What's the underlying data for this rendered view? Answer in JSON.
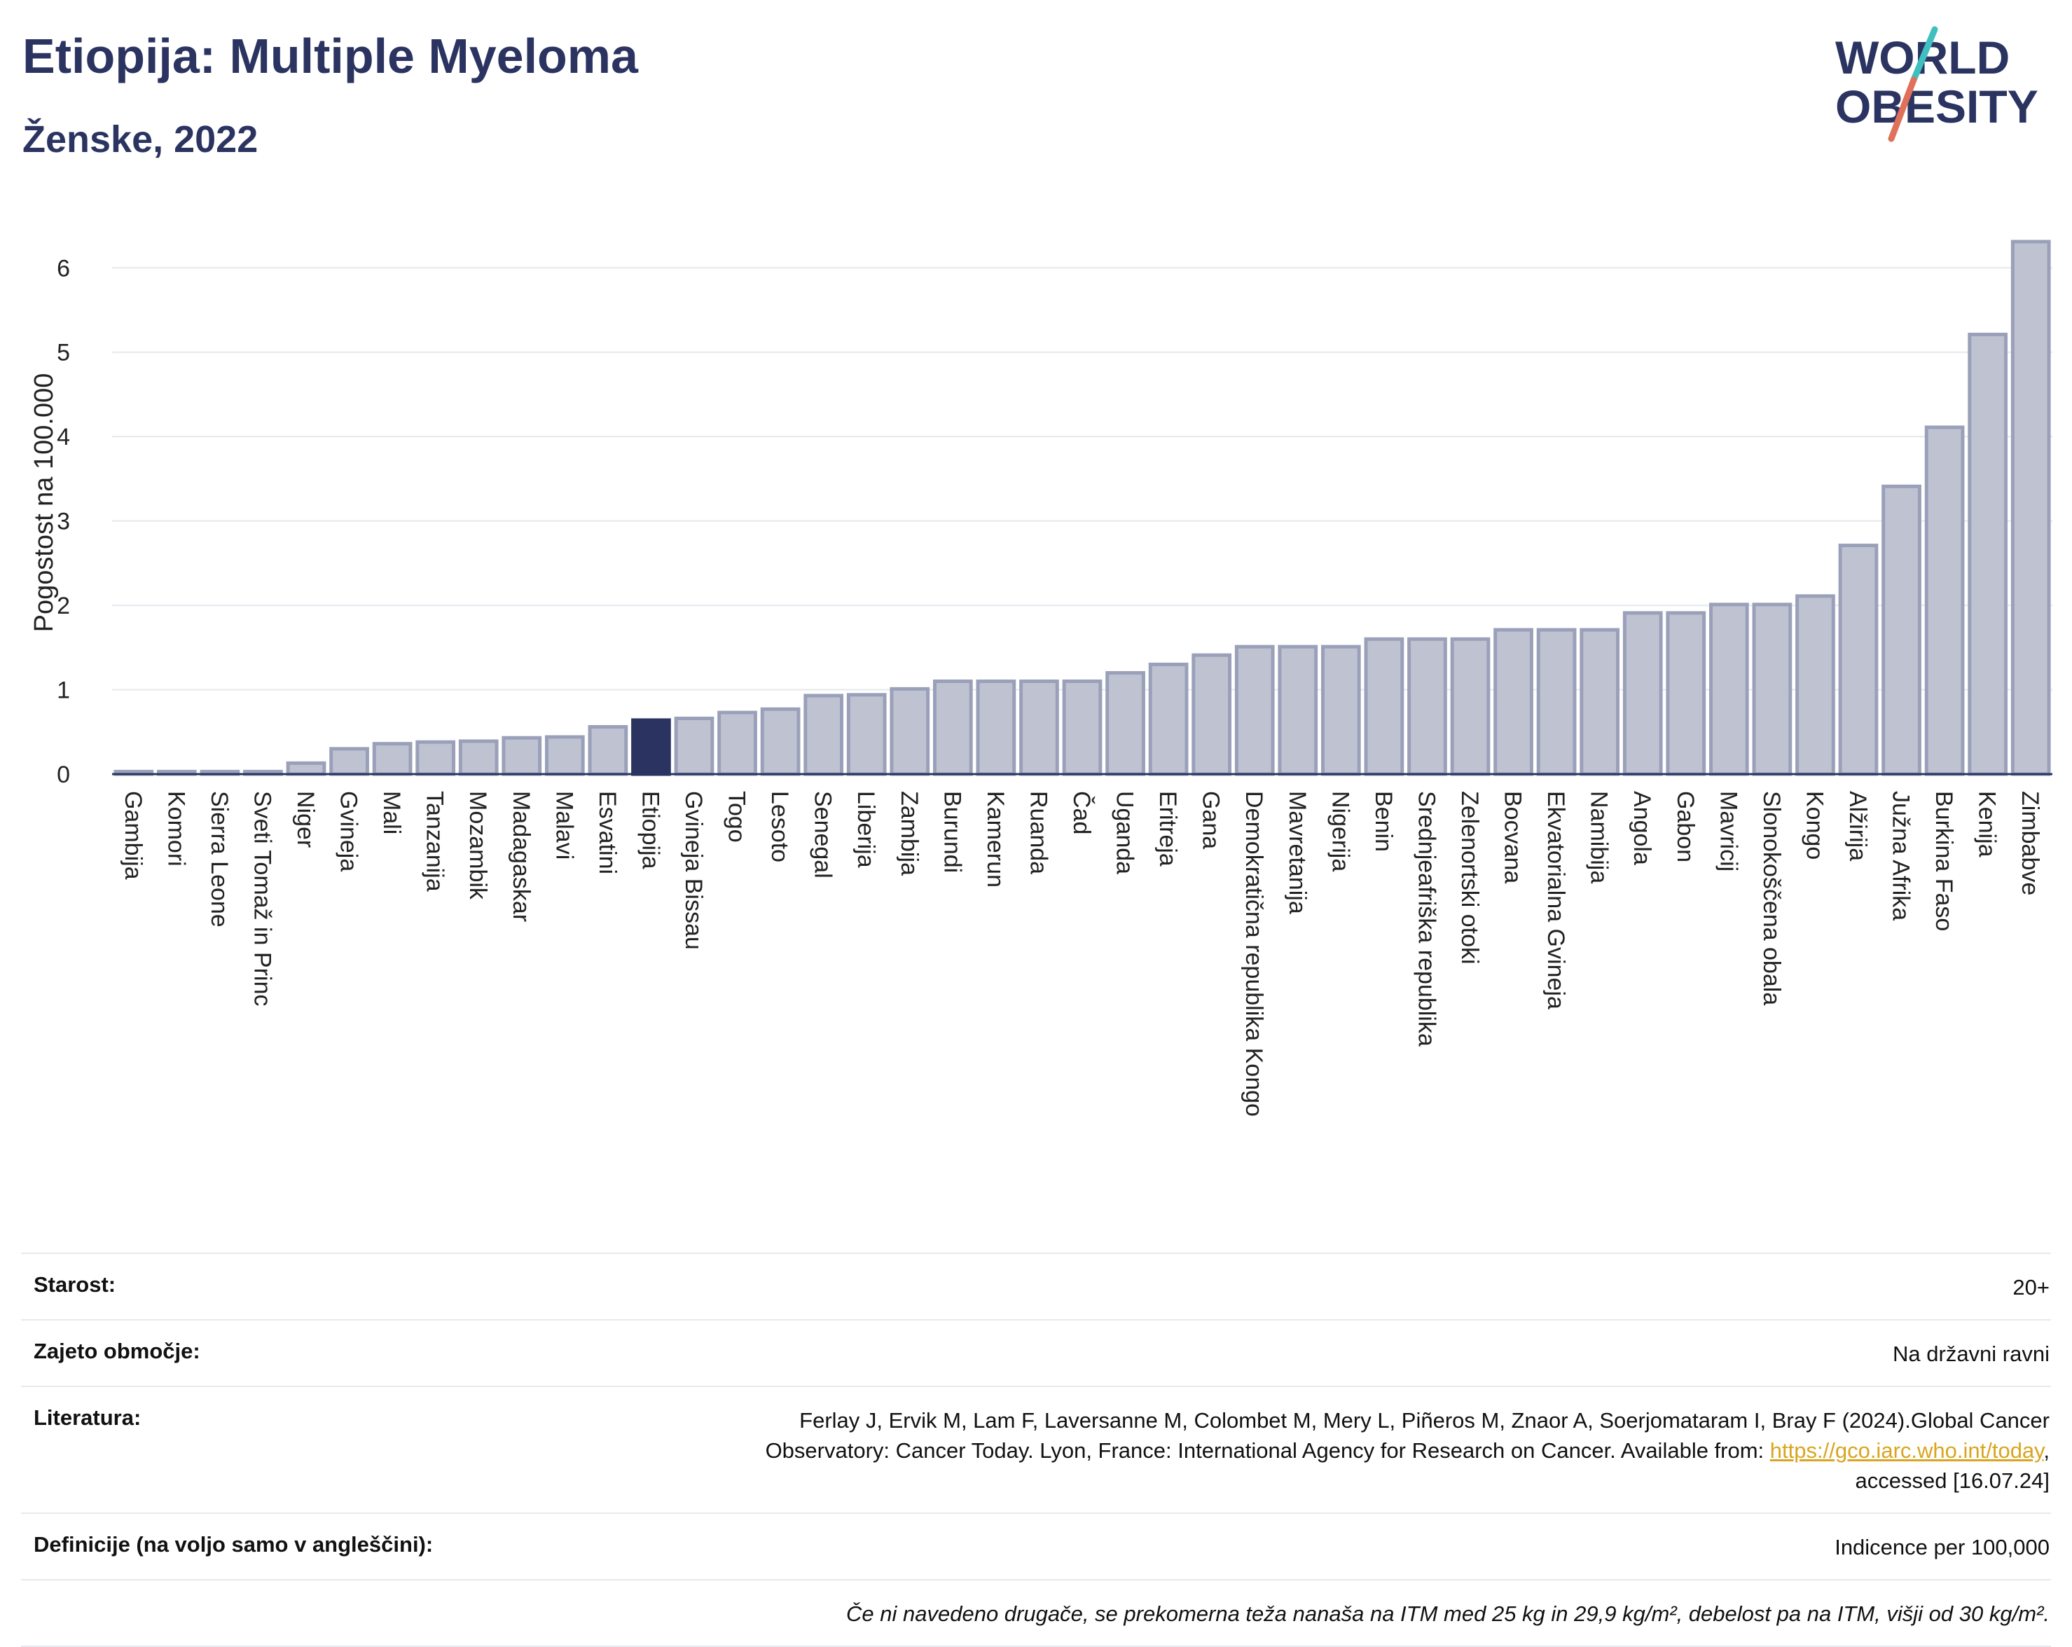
{
  "header": {
    "title": "Etiopija: Multiple Myeloma",
    "subtitle": "Ženske, 2022"
  },
  "logo": {
    "line1": "WORLD",
    "line2": "OBESITY",
    "colors": {
      "text": "#2b3461",
      "slash_teal": "#3fbfbf",
      "slash_coral": "#e0705a"
    }
  },
  "chart_data": {
    "type": "bar",
    "ylabel": "Pogostost na 100.000",
    "xlabel": "",
    "ylim": [
      0,
      6.6
    ],
    "yticks": [
      0,
      1,
      2,
      3,
      4,
      5,
      6
    ],
    "grid": true,
    "highlight": "Etiopija",
    "colors": {
      "bar": "#bfc3d1",
      "bar_edge": "#9aa0b9",
      "highlight": "#2b3461",
      "grid": "#e6e8ee",
      "axis": "#2b3461"
    },
    "categories": [
      "Gambija",
      "Komori",
      "Sierra Leone",
      "Sveti Tomaž in Princ",
      "Niger",
      "Gvineja",
      "Mali",
      "Tanzanija",
      "Mozambik",
      "Madagaskar",
      "Malavi",
      "Esvatini",
      "Etiopija",
      "Gvineja Bissau",
      "Togo",
      "Lesoto",
      "Senegal",
      "Liberija",
      "Zambija",
      "Burundi",
      "Kamerun",
      "Ruanda",
      "Čad",
      "Uganda",
      "Eritreja",
      "Gana",
      "Demokratična republika Kongo",
      "Mavretanija",
      "Nigerija",
      "Benin",
      "Srednjeafriška republika",
      "Zelenortski otoki",
      "Bocvana",
      "Ekvatorialna Gvineja",
      "Namibija",
      "Angola",
      "Gabon",
      "Mavricij",
      "Slonokoščena obala",
      "Kongo",
      "Alžirija",
      "Južna Afrika",
      "Burkina Faso",
      "Kenija",
      "Zimbabve"
    ],
    "values": [
      0.03,
      0.03,
      0.03,
      0.03,
      0.13,
      0.3,
      0.36,
      0.38,
      0.39,
      0.43,
      0.44,
      0.56,
      0.64,
      0.66,
      0.73,
      0.77,
      0.93,
      0.94,
      1.01,
      1.1,
      1.1,
      1.1,
      1.1,
      1.2,
      1.3,
      1.41,
      1.51,
      1.51,
      1.51,
      1.6,
      1.6,
      1.6,
      1.71,
      1.71,
      1.71,
      1.91,
      1.91,
      2.01,
      2.01,
      2.11,
      2.71,
      3.41,
      4.11,
      5.21,
      6.31
    ]
  },
  "info": {
    "age_label": "Starost:",
    "age_value": "20+",
    "coverage_label": "Zajeto območje:",
    "coverage_value": "Na državni ravni",
    "references_label": "Literatura:",
    "references_line1": "Ferlay J, Ervik M, Lam F, Laversanne M, Colombet M, Mery L, Piñeros M, Znaor A, Soerjomataram I, Bray F (2024).Global Cancer",
    "references_line2_pre": "Observatory: Cancer Today. Lyon, France: International Agency for Research on Cancer. Available from: ",
    "references_link": "https://gco.iarc.who.int/today",
    "references_line2_post": ",",
    "references_line3": "accessed [16.07.24]",
    "definitions_label": "Definicije (na voljo samo v angleščini):",
    "definitions_value": "Indicence per 100,000",
    "footnote": "Če ni navedeno drugače, se prekomerna teža nanaša na ITM med 25 kg in 29,9 kg/m², debelost pa na ITM, višji od 30 kg/m²."
  }
}
